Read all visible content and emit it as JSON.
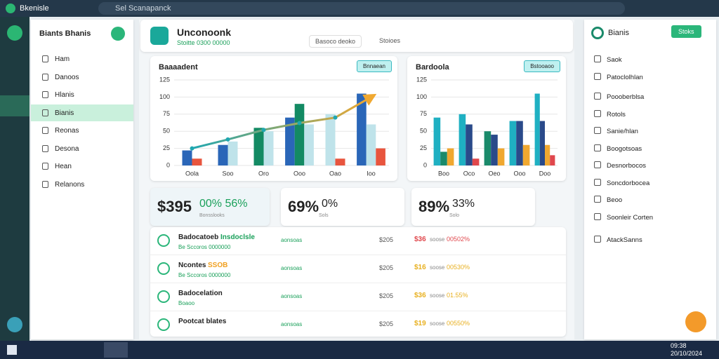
{
  "browser": {
    "app": "Bkenisle",
    "address": "Sel Scanapanck"
  },
  "sidebar": {
    "title": "Biants Bhanis",
    "items": [
      "Ham",
      "Danoos",
      "Hlanis",
      "Bianis",
      "Reonas",
      "Desona",
      "Hean",
      "Relanons"
    ],
    "active": 3
  },
  "header": {
    "title": "Unconoonk",
    "subtitle": "Stoitte 0300 00000",
    "filter": "Basoco deoko",
    "status": "Stoioes"
  },
  "charts": [
    {
      "type": "bar",
      "title": "Baaaadent",
      "button": "Bnnaean",
      "categories": [
        "Oola",
        "Soo",
        "Oro",
        "Ooo",
        "Oao",
        "Ioo"
      ],
      "ylim": [
        0,
        125
      ],
      "yticks": [
        0,
        25,
        50,
        75,
        100,
        125
      ],
      "grid": true,
      "series": [
        {
          "color": "#2a66b8",
          "values": [
            22,
            30,
            null,
            70,
            null,
            105
          ]
        },
        {
          "color": "#138a63",
          "values": [
            null,
            null,
            55,
            90,
            null,
            null
          ]
        },
        {
          "color": "#bfe3ea",
          "values": [
            null,
            35,
            50,
            60,
            75,
            60
          ]
        },
        {
          "color": "#e8553e",
          "values": [
            10,
            null,
            null,
            null,
            10,
            25
          ]
        }
      ],
      "line": {
        "color": "#20a7b0",
        "end_color": "#f0a830",
        "values": [
          25,
          38,
          52,
          62,
          70,
          100
        ]
      }
    },
    {
      "type": "bar",
      "title": "Bardoola",
      "button": "Bstooaoo",
      "categories": [
        "Boo",
        "Oco",
        "Oeo",
        "Ooo",
        "Doo"
      ],
      "ylim": [
        0,
        125
      ],
      "yticks": [
        0,
        25,
        50,
        75,
        100,
        125
      ],
      "grid": true,
      "series": [
        {
          "color": "#1fb0c2",
          "values": [
            70,
            75,
            null,
            65,
            105
          ]
        },
        {
          "color": "#1a8a6a",
          "values": [
            20,
            null,
            50,
            null,
            null
          ]
        },
        {
          "color": "#2a4a8a",
          "values": [
            null,
            60,
            45,
            65,
            65
          ]
        },
        {
          "color": "#f0a830",
          "values": [
            25,
            null,
            25,
            30,
            30
          ]
        },
        {
          "color": "#e0474c",
          "values": [
            null,
            10,
            null,
            null,
            15
          ]
        }
      ]
    }
  ],
  "stats": [
    {
      "value": "$395",
      "change": "00% 56%",
      "sub": "Bonsslooks",
      "color": "#1aa05a"
    },
    {
      "value": "69%",
      "change": "0%",
      "sub": "Sols",
      "color": "#222222"
    },
    {
      "value": "89%",
      "change": "33%",
      "sub": "Solo",
      "color": "#222222"
    }
  ],
  "rows": [
    {
      "title": "Badocatoeb",
      "highlight": "Insdoclsle",
      "hcolor": "#1aa05a",
      "subtitle": "Be Sccoros 0000000",
      "tag": "aonsoas",
      "amount": "$205",
      "change": "$36",
      "note": "soose",
      "pct": "00502%",
      "color": "#e0474c"
    },
    {
      "title": "Ncontes",
      "highlight": "SSOB",
      "hcolor": "#f0a020",
      "subtitle": "Be Sccoros 0000000",
      "tag": "aonsoas",
      "amount": "$205",
      "change": "$16",
      "note": "soose",
      "pct": "00530%",
      "color": "#e8b020"
    },
    {
      "title": "Badocelation",
      "highlight": "",
      "hcolor": "#1aa05a",
      "subtitle": "Boaoo",
      "tag": "aonsoas",
      "amount": "$205",
      "change": "$36",
      "note": "soose",
      "pct": "01.55%",
      "color": "#e8b020"
    },
    {
      "title": "Pootcat blates",
      "highlight": "",
      "hcolor": "#1aa05a",
      "subtitle": "",
      "tag": "aonsoas",
      "amount": "$205",
      "change": "$19",
      "note": "soose",
      "pct": "00550%",
      "color": "#e8b020"
    }
  ],
  "panel": {
    "title": "Bianis",
    "button": "Stoks",
    "items": [
      "Saok",
      "Patoclolhlan",
      "Poooberblsa",
      "Rotols",
      "Sanie/hlan",
      "Boogotsoas",
      "Desnorbocos",
      "Soncdorbocea",
      "Beoo",
      "Soonleir Corten",
      "AtackSanns"
    ]
  },
  "taskbar": {
    "time": "09:38",
    "date": "20/10/2024"
  }
}
